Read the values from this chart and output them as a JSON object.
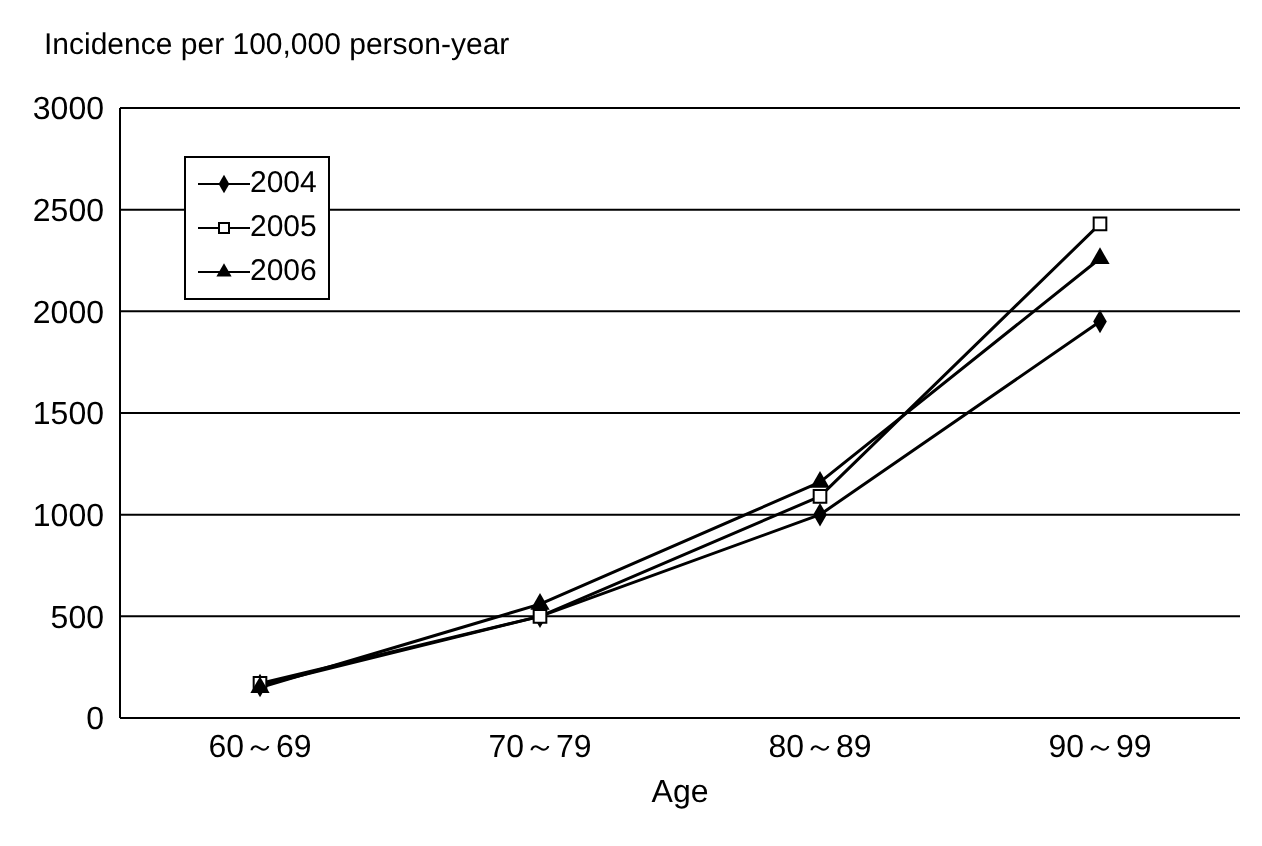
{
  "chart_data": {
    "type": "line",
    "ylabel": "Incidence per 100,000 person-year",
    "xlabel": "Age",
    "categories": [
      "60～69",
      "70～79",
      "80～89",
      "90～99"
    ],
    "series": [
      {
        "name": "2004",
        "color": "#000000",
        "marker": "diamond",
        "values": [
          160,
          500,
          1000,
          1950
        ]
      },
      {
        "name": "2005",
        "color": "#000000",
        "marker": "square",
        "values": [
          170,
          500,
          1090,
          2430
        ]
      },
      {
        "name": "2006",
        "color": "#000000",
        "marker": "triangle",
        "values": [
          150,
          560,
          1160,
          2260
        ]
      }
    ],
    "ylim": [
      0,
      3000
    ],
    "yticks": [
      0,
      500,
      1000,
      1500,
      2000,
      2500,
      3000
    ],
    "grid": "y",
    "legend": "top left"
  }
}
